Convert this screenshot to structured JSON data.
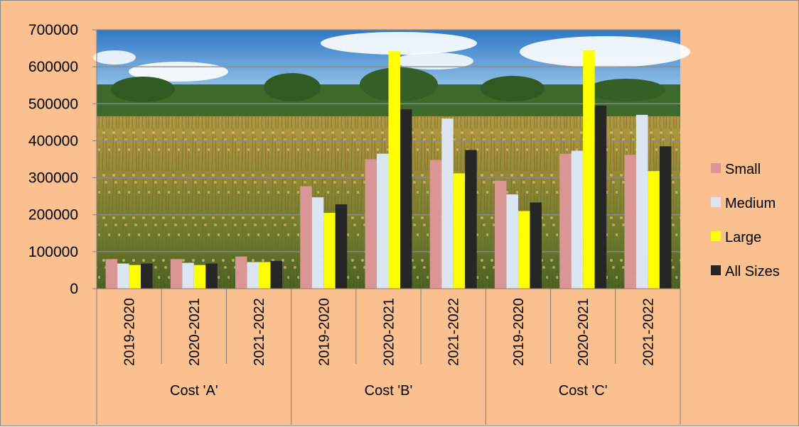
{
  "chart_data": {
    "type": "bar",
    "groups": [
      {
        "label": "Cost 'A'",
        "categories": [
          "2019-2020",
          "2020-2021",
          "2021-2022"
        ]
      },
      {
        "label": "Cost 'B'",
        "categories": [
          "2019-2020",
          "2020-2021",
          "2021-2022"
        ]
      },
      {
        "label": "Cost 'C'",
        "categories": [
          "2019-2020",
          "2020-2021",
          "2021-2022"
        ]
      }
    ],
    "series": [
      {
        "name": "Small",
        "color": "#D99694",
        "values": [
          80000,
          80000,
          87000,
          277000,
          350000,
          348000,
          292000,
          365000,
          362000
        ]
      },
      {
        "name": "Medium",
        "color": "#DCE6F2",
        "values": [
          68000,
          70000,
          72000,
          247000,
          365000,
          460000,
          255000,
          373000,
          470000
        ]
      },
      {
        "name": "Large",
        "color": "#FFFF00",
        "values": [
          64000,
          64000,
          72000,
          205000,
          642000,
          312000,
          210000,
          645000,
          318000
        ]
      },
      {
        "name": "All Sizes",
        "color": "#262626",
        "values": [
          68000,
          68000,
          75000,
          228000,
          485000,
          375000,
          233000,
          495000,
          385000
        ]
      }
    ],
    "yticks": [
      "0",
      "100000",
      "200000",
      "300000",
      "400000",
      "500000",
      "600000",
      "700000"
    ],
    "ylim": [
      0,
      700000
    ],
    "grid": true,
    "legend_position": "right",
    "plot_background": "photo of a ripe paddy field under a blue sky",
    "background_color": "#FAC090"
  }
}
